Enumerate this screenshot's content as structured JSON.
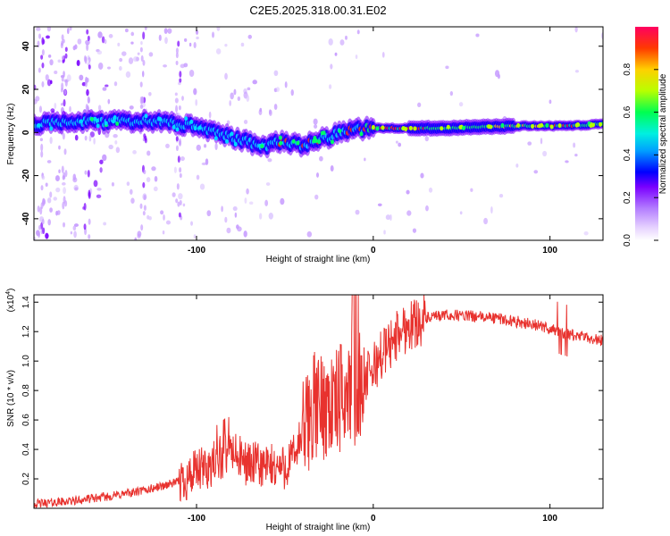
{
  "chart_data": [
    {
      "type": "heatmap",
      "title": "C2E5.2025.318.00.31.E02",
      "xlabel": "Height of straight line (km)",
      "ylabel": "Frequency (Hz)",
      "xlim": [
        -192,
        130
      ],
      "ylim": [
        -50,
        49
      ],
      "xticks": [
        -100,
        0,
        100
      ],
      "xtick_labels": [
        "-100",
        "0",
        "100"
      ],
      "yticks": [
        -40,
        -20,
        0,
        20,
        40
      ],
      "ytick_labels": [
        "-40",
        "-20",
        "0",
        "20",
        "40"
      ],
      "colorbar": {
        "label": "Normalized spectral amplitude",
        "range": [
          0,
          1
        ],
        "ticks": [
          0.0,
          0.2,
          0.4,
          0.6,
          0.8
        ],
        "tick_labels": [
          "0.0",
          "0.2",
          "0.4",
          "0.6",
          "0.8"
        ],
        "colors": [
          "#ffffff",
          "#c79cff",
          "#7a00ff",
          "#0000ff",
          "#00d8ff",
          "#00ff66",
          "#b8ff00",
          "#ffd000",
          "#ff3a00",
          "#ff0060"
        ]
      },
      "ridge": [
        {
          "x": -185,
          "y": 4
        },
        {
          "x": -160,
          "y": 5
        },
        {
          "x": -140,
          "y": 5
        },
        {
          "x": -120,
          "y": 5
        },
        {
          "x": -100,
          "y": 3
        },
        {
          "x": -80,
          "y": -2
        },
        {
          "x": -62,
          "y": -7
        },
        {
          "x": -52,
          "y": -4
        },
        {
          "x": -40,
          "y": -6
        },
        {
          "x": -25,
          "y": -2
        },
        {
          "x": -15,
          "y": 1
        },
        {
          "x": 0,
          "y": 2
        },
        {
          "x": 40,
          "y": 2
        },
        {
          "x": 80,
          "y": 3
        },
        {
          "x": 110,
          "y": 3
        },
        {
          "x": 130,
          "y": 4
        }
      ]
    },
    {
      "type": "line",
      "xlabel": "Height of straight line (km)",
      "ylabel": "SNR (10 * v/v)",
      "multiplier_label": "(x10",
      "multiplier_exp": "4",
      "multiplier_close": ")",
      "xlim": [
        -192,
        130
      ],
      "ylim": [
        0,
        1.45
      ],
      "xticks": [
        -100,
        0,
        100
      ],
      "xtick_labels": [
        "-100",
        "0",
        "100"
      ],
      "yticks": [
        0.2,
        0.4,
        0.6,
        0.8,
        1.0,
        1.2,
        1.4
      ],
      "ytick_labels": [
        "0.2",
        "0.4",
        "0.6",
        "0.8",
        "1.0",
        "1.2",
        "1.4"
      ],
      "series": [
        {
          "name": "SNR",
          "color": "#e8322e",
          "x": [
            -192,
            -170,
            -150,
            -130,
            -110,
            -100,
            -90,
            -85,
            -80,
            -75,
            -70,
            -60,
            -50,
            -45,
            -40,
            -36,
            -33,
            -30,
            -27,
            -24,
            -20,
            -16,
            -12,
            -10,
            -7,
            -4,
            0,
            5,
            10,
            15,
            20,
            25,
            30,
            35,
            40,
            50,
            60,
            70,
            80,
            90,
            100,
            105,
            108,
            110,
            115,
            120,
            125,
            130
          ],
          "values": [
            0.03,
            0.05,
            0.08,
            0.12,
            0.18,
            0.24,
            0.3,
            0.35,
            0.38,
            0.33,
            0.3,
            0.28,
            0.28,
            0.35,
            0.5,
            0.62,
            0.7,
            0.68,
            0.72,
            0.7,
            0.72,
            0.78,
            0.82,
            0.8,
            0.85,
            0.88,
            0.95,
            1.05,
            1.12,
            1.2,
            1.24,
            1.27,
            1.29,
            1.3,
            1.31,
            1.31,
            1.3,
            1.29,
            1.27,
            1.25,
            1.22,
            1.2,
            1.19,
            1.18,
            1.17,
            1.16,
            1.15,
            1.14
          ]
        }
      ]
    }
  ]
}
